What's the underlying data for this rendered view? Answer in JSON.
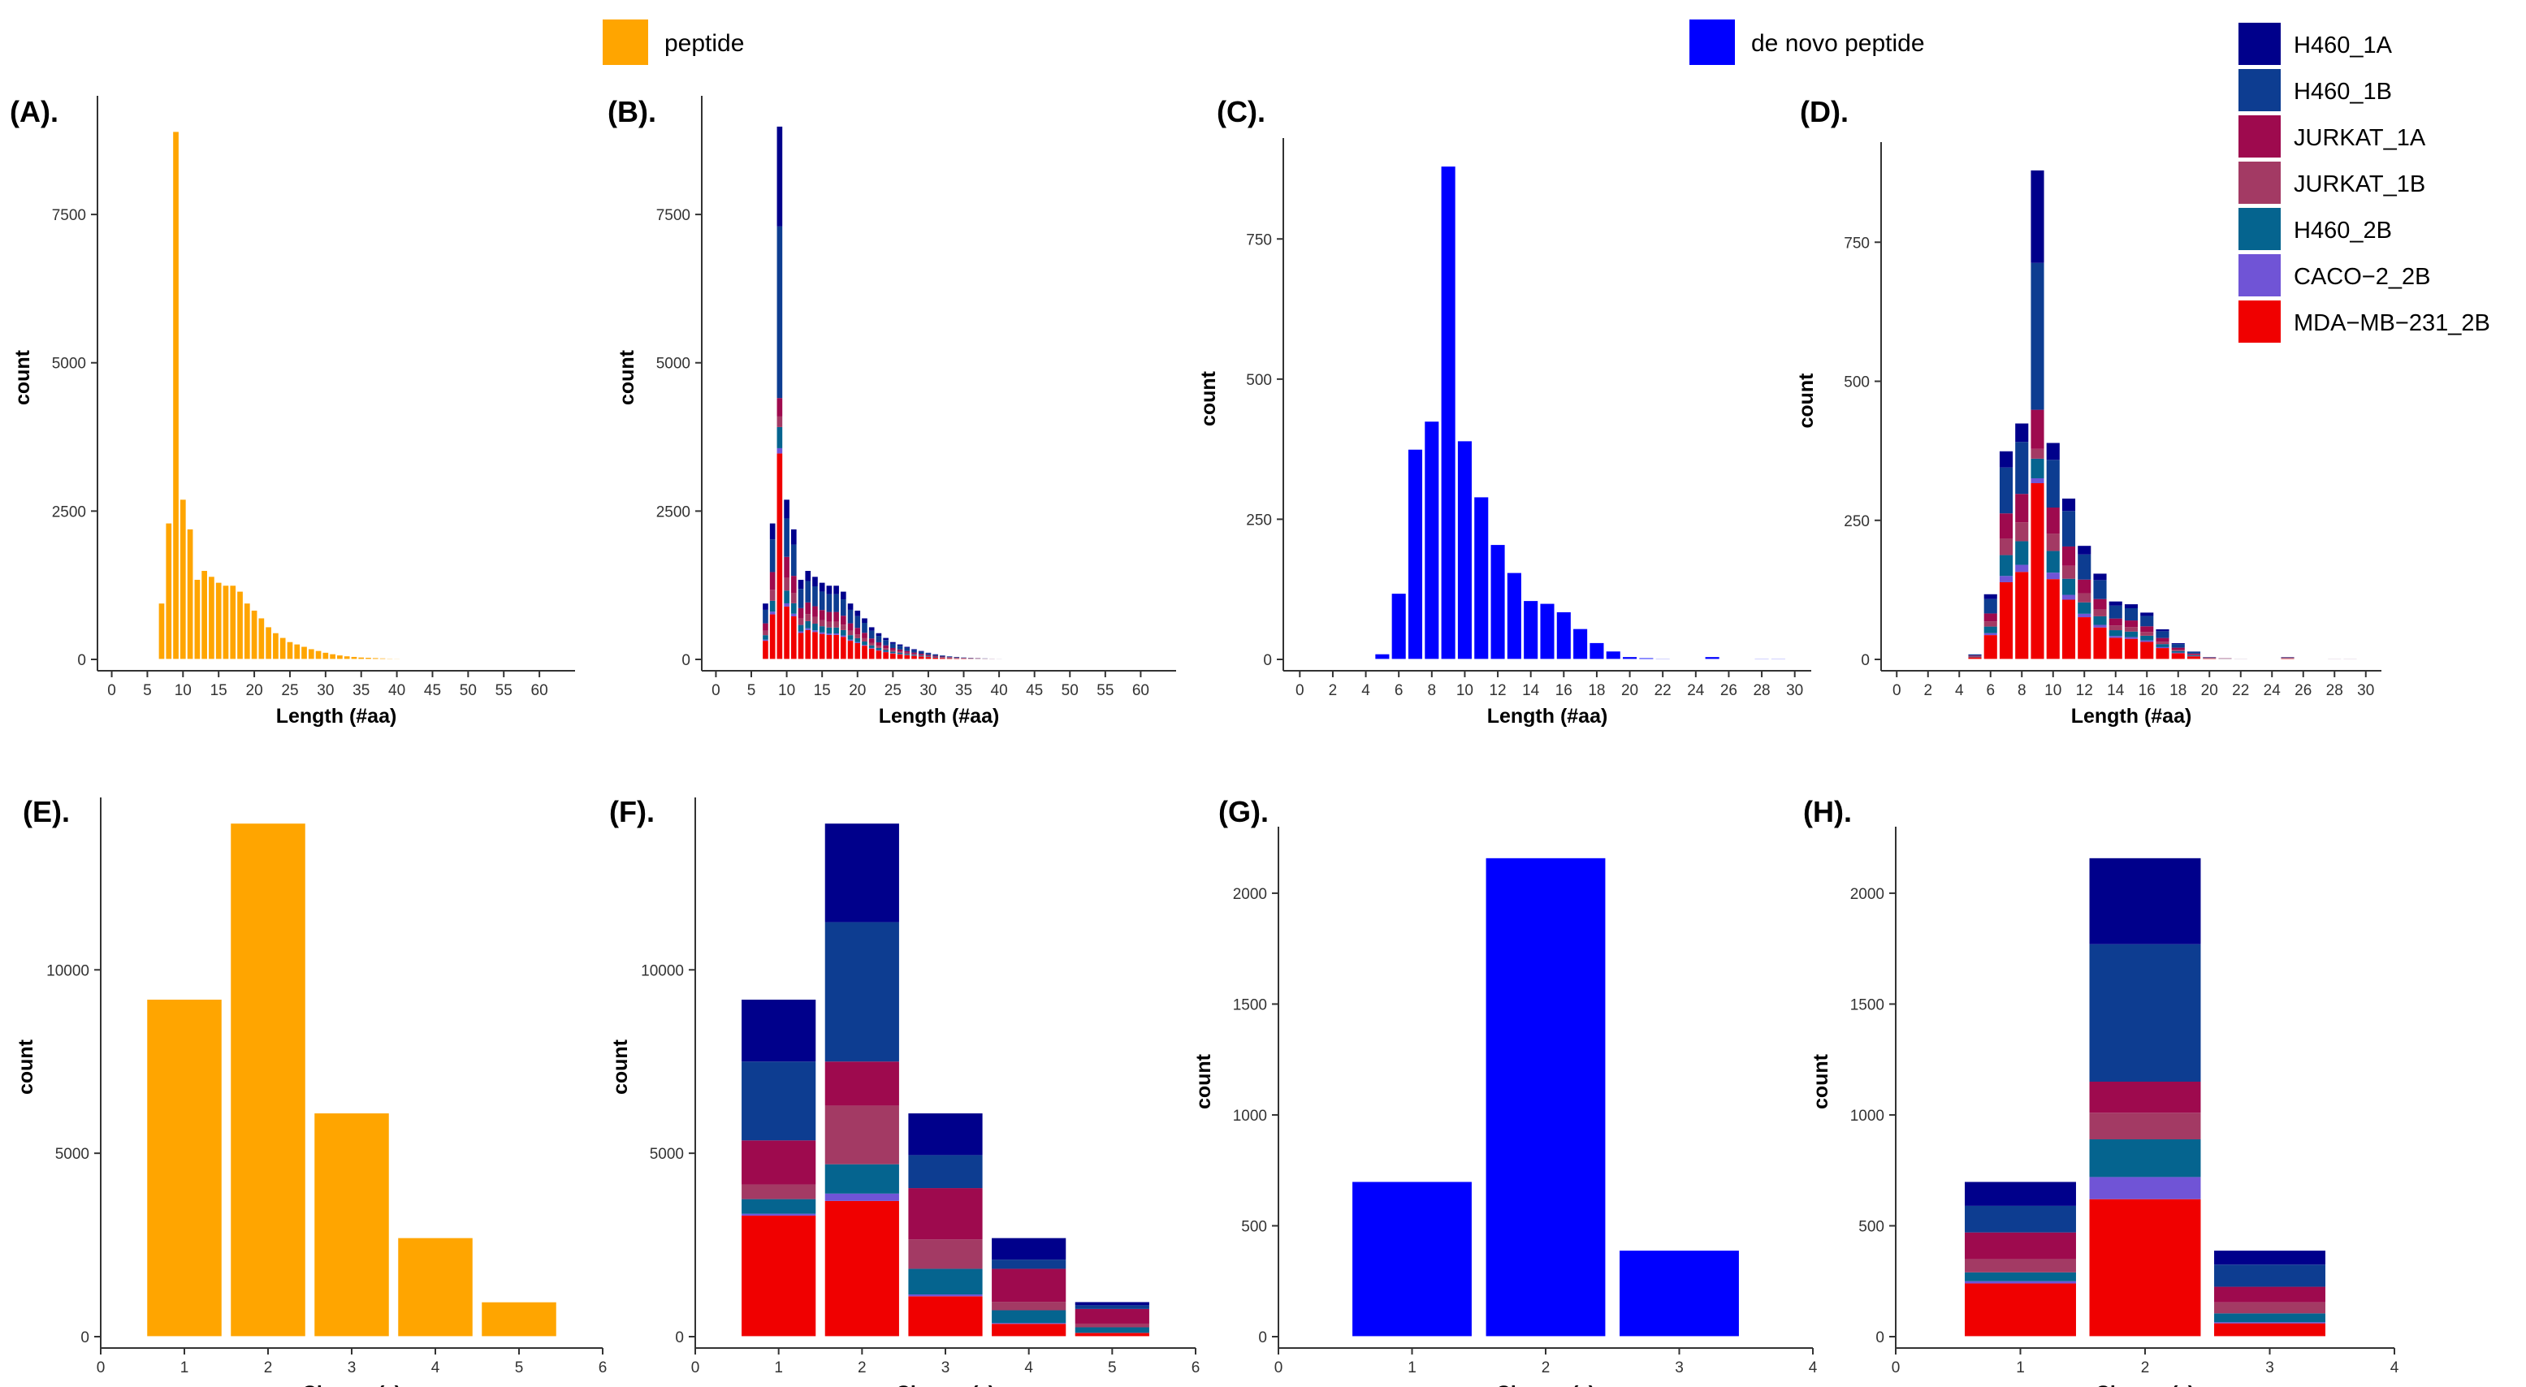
{
  "colors": {
    "peptide": "#FFA500",
    "denovo": "#0000FF",
    "H460_1A": "#00008B",
    "H460_1B": "#0D3D91",
    "JURKAT_1A": "#9E0A4E",
    "JURKAT_1B": "#A33A64",
    "H460_2B": "#05648F",
    "CACO-2_2B": "#7054D6",
    "MDA-MB-231_2B": "#F00000"
  },
  "legend": {
    "peptide_label": "peptide",
    "denovo_label": "de novo peptide",
    "samples": [
      "H460_1A",
      "H460_1B",
      "JURKAT_1A",
      "JURKAT_1B",
      "H460_2B",
      "CACO−2_2B",
      "MDA−MB−231_2B"
    ],
    "sample_keys": [
      "H460_1A",
      "H460_1B",
      "JURKAT_1A",
      "JURKAT_1B",
      "H460_2B",
      "CACO-2_2B",
      "MDA-MB-231_2B"
    ]
  },
  "chart_data": [
    {
      "id": "A",
      "label": "(A).",
      "type": "bar",
      "stacked": false,
      "color_key": "peptide",
      "xlabel": "Length (#aa)",
      "ylabel": "count",
      "xlim": [
        -2,
        65
      ],
      "ylim": [
        0,
        9500
      ],
      "xticks": [
        0,
        5,
        10,
        15,
        20,
        25,
        30,
        35,
        40,
        45,
        50,
        55,
        60
      ],
      "yticks": [
        0,
        2500,
        5000,
        7500
      ],
      "x": [
        7,
        8,
        9,
        10,
        11,
        12,
        13,
        14,
        15,
        16,
        17,
        18,
        19,
        20,
        21,
        22,
        23,
        24,
        25,
        26,
        27,
        28,
        29,
        30,
        31,
        32,
        33,
        34,
        35,
        36,
        37,
        38,
        39,
        40,
        41,
        42,
        43,
        44,
        45,
        46,
        47,
        48,
        49,
        50,
        51,
        52,
        53,
        54,
        55,
        56
      ],
      "values": [
        950,
        2300,
        8900,
        2700,
        2200,
        1350,
        1500,
        1400,
        1300,
        1250,
        1250,
        1150,
        950,
        830,
        700,
        550,
        450,
        370,
        300,
        260,
        220,
        180,
        150,
        120,
        95,
        75,
        60,
        50,
        40,
        35,
        30,
        25,
        20,
        18,
        15,
        12,
        10,
        8,
        7,
        6,
        5,
        5,
        4,
        4,
        3,
        3,
        2,
        2,
        2,
        2
      ]
    },
    {
      "id": "B",
      "label": "(B).",
      "type": "bar",
      "stacked": true,
      "xlabel": "Length (#aa)",
      "ylabel": "count",
      "xlim": [
        -2,
        65
      ],
      "ylim": [
        0,
        9500
      ],
      "xticks": [
        0,
        5,
        10,
        15,
        20,
        25,
        30,
        35,
        40,
        45,
        50,
        55,
        60
      ],
      "yticks": [
        0,
        2500,
        5000,
        7500
      ],
      "x": [
        7,
        8,
        9,
        10,
        11,
        12,
        13,
        14,
        15,
        16,
        17,
        18,
        19,
        20,
        21,
        22,
        23,
        24,
        25,
        26,
        27,
        28,
        29,
        30,
        31,
        32,
        33,
        34,
        35,
        36,
        37,
        38,
        39,
        40,
        41,
        42,
        43,
        44,
        45,
        46,
        47,
        48,
        49,
        50,
        51,
        52,
        53,
        54,
        55,
        56,
        57,
        58,
        59,
        60,
        61,
        62
      ],
      "totals": [
        950,
        2300,
        8900,
        2700,
        2200,
        1350,
        1500,
        1400,
        1300,
        1250,
        1250,
        1150,
        950,
        830,
        700,
        550,
        450,
        370,
        300,
        260,
        220,
        180,
        150,
        120,
        95,
        75,
        60,
        50,
        40,
        35,
        30,
        25,
        20,
        18,
        15,
        12,
        10,
        8,
        7,
        6,
        5,
        5,
        4,
        4,
        3,
        3,
        2,
        2,
        2,
        2,
        2,
        2,
        2,
        2,
        2,
        2
      ],
      "segment_order": [
        "MDA-MB-231_2B",
        "CACO-2_2B",
        "H460_2B",
        "JURKAT_1B",
        "JURKAT_1A",
        "H460_1B",
        "H460_1A"
      ],
      "fractions": {
        "default": [
          0.33,
          0.02,
          0.08,
          0.08,
          0.13,
          0.24,
          0.12
        ],
        "9": [
          0.39,
          0.01,
          0.04,
          0.02,
          0.035,
          0.325,
          0.19
        ]
      }
    },
    {
      "id": "C",
      "label": "(C).",
      "type": "bar",
      "stacked": false,
      "color_key": "denovo",
      "xlabel": "Length (#aa)",
      "ylabel": "count",
      "xlim": [
        -1,
        31
      ],
      "ylim": [
        0,
        930
      ],
      "xticks": [
        0,
        2,
        4,
        6,
        8,
        10,
        12,
        14,
        16,
        18,
        20,
        22,
        24,
        26,
        28,
        30
      ],
      "yticks": [
        0,
        250,
        500,
        750
      ],
      "x": [
        5,
        6,
        7,
        8,
        9,
        10,
        11,
        12,
        13,
        14,
        15,
        16,
        17,
        18,
        19,
        20,
        21,
        22,
        25,
        28,
        29
      ],
      "values": [
        10,
        118,
        375,
        425,
        880,
        390,
        290,
        205,
        155,
        105,
        100,
        85,
        55,
        30,
        15,
        5,
        3,
        2,
        5,
        2,
        2
      ]
    },
    {
      "id": "D",
      "label": "(D).",
      "type": "bar",
      "stacked": true,
      "xlabel": "Length (#aa)",
      "ylabel": "count",
      "xlim": [
        -1,
        31
      ],
      "ylim": [
        0,
        930
      ],
      "xticks": [
        0,
        2,
        4,
        6,
        8,
        10,
        12,
        14,
        16,
        18,
        20,
        22,
        24,
        26,
        28,
        30
      ],
      "yticks": [
        0,
        250,
        500,
        750
      ],
      "x": [
        5,
        6,
        7,
        8,
        9,
        10,
        11,
        12,
        13,
        14,
        15,
        16,
        17,
        18,
        19,
        20,
        21,
        22,
        25,
        28,
        29
      ],
      "totals": [
        10,
        118,
        375,
        425,
        880,
        390,
        290,
        205,
        155,
        105,
        100,
        85,
        55,
        30,
        15,
        5,
        3,
        2,
        5,
        2,
        2
      ],
      "segment_order": [
        "MDA-MB-231_2B",
        "CACO-2_2B",
        "H460_2B",
        "JURKAT_1B",
        "JURKAT_1A",
        "H460_1B",
        "H460_1A"
      ],
      "fractions": {
        "default": [
          0.37,
          0.03,
          0.1,
          0.08,
          0.12,
          0.22,
          0.08
        ],
        "9": [
          0.36,
          0.01,
          0.04,
          0.02,
          0.08,
          0.3,
          0.19
        ]
      }
    },
    {
      "id": "E",
      "label": "(E).",
      "type": "bar",
      "stacked": false,
      "color_key": "peptide",
      "xlabel": "Charge (z)",
      "ylabel": "count",
      "xlim": [
        0,
        6
      ],
      "ylim": [
        0,
        14700
      ],
      "xticks": [
        0,
        1,
        2,
        3,
        4,
        5,
        6
      ],
      "yticks": [
        0,
        5000,
        10000
      ],
      "x": [
        1,
        2,
        3,
        4,
        5
      ],
      "values": [
        9200,
        14000,
        6100,
        2700,
        950
      ]
    },
    {
      "id": "F",
      "label": "(F).",
      "type": "bar",
      "stacked": true,
      "xlabel": "Charge (z)",
      "ylabel": "count",
      "xlim": [
        0,
        6
      ],
      "ylim": [
        0,
        14700
      ],
      "xticks": [
        0,
        1,
        2,
        3,
        4,
        5,
        6
      ],
      "yticks": [
        0,
        5000,
        10000
      ],
      "x": [
        1,
        2,
        3,
        4,
        5
      ],
      "segment_order": [
        "MDA-MB-231_2B",
        "CACO-2_2B",
        "H460_2B",
        "JURKAT_1B",
        "JURKAT_1A",
        "H460_1B",
        "H460_1A"
      ],
      "stacks": [
        [
          3300,
          50,
          400,
          400,
          1200,
          2150,
          1700
        ],
        [
          3700,
          200,
          800,
          1600,
          1200,
          3800,
          2700
        ],
        [
          1100,
          50,
          700,
          800,
          1400,
          900,
          1150
        ],
        [
          350,
          20,
          350,
          230,
          900,
          250,
          600
        ],
        [
          100,
          5,
          150,
          100,
          400,
          100,
          100
        ]
      ]
    },
    {
      "id": "G",
      "label": "(G).",
      "type": "bar",
      "stacked": false,
      "color_key": "denovo",
      "xlabel": "Charge (z)",
      "ylabel": "count",
      "xlim": [
        0,
        4
      ],
      "ylim": [
        0,
        2300
      ],
      "xticks": [
        0,
        1,
        2,
        3,
        4
      ],
      "yticks": [
        0,
        500,
        1000,
        1500,
        2000
      ],
      "x": [
        1,
        2,
        3
      ],
      "values": [
        700,
        2160,
        390
      ]
    },
    {
      "id": "H",
      "label": "(H).",
      "type": "bar",
      "stacked": true,
      "xlabel": "Charge (z)",
      "ylabel": "count",
      "xlim": [
        0,
        4
      ],
      "ylim": [
        0,
        2300
      ],
      "xticks": [
        0,
        1,
        2,
        3,
        4
      ],
      "yticks": [
        0,
        500,
        1000,
        1500,
        2000
      ],
      "x": [
        1,
        2,
        3
      ],
      "segment_order": [
        "MDA-MB-231_2B",
        "CACO-2_2B",
        "H460_2B",
        "JURKAT_1B",
        "JURKAT_1A",
        "H460_1B",
        "H460_1A"
      ],
      "stacks": [
        [
          240,
          10,
          40,
          60,
          120,
          120,
          110
        ],
        [
          620,
          100,
          170,
          120,
          140,
          620,
          390
        ],
        [
          60,
          5,
          40,
          50,
          70,
          100,
          65
        ]
      ]
    }
  ]
}
